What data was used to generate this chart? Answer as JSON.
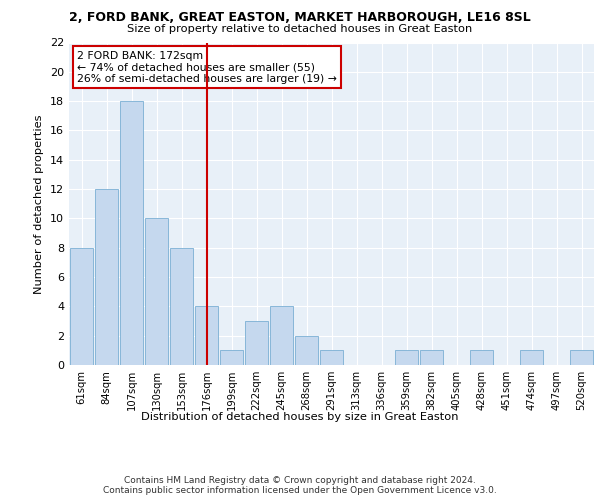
{
  "title": "2, FORD BANK, GREAT EASTON, MARKET HARBOROUGH, LE16 8SL",
  "subtitle": "Size of property relative to detached houses in Great Easton",
  "xlabel": "Distribution of detached houses by size in Great Easton",
  "ylabel": "Number of detached properties",
  "categories": [
    "61sqm",
    "84sqm",
    "107sqm",
    "130sqm",
    "153sqm",
    "176sqm",
    "199sqm",
    "222sqm",
    "245sqm",
    "268sqm",
    "291sqm",
    "313sqm",
    "336sqm",
    "359sqm",
    "382sqm",
    "405sqm",
    "428sqm",
    "451sqm",
    "474sqm",
    "497sqm",
    "520sqm"
  ],
  "values": [
    8,
    12,
    18,
    10,
    8,
    4,
    1,
    3,
    4,
    2,
    1,
    0,
    0,
    1,
    1,
    0,
    1,
    0,
    1,
    0,
    1
  ],
  "bar_color": "#c5d8ee",
  "bar_edge_color": "#7aafd4",
  "vline_index": 5,
  "vline_color": "#cc0000",
  "annotation_line1": "2 FORD BANK: 172sqm",
  "annotation_line2": "← 74% of detached houses are smaller (55)",
  "annotation_line3": "26% of semi-detached houses are larger (19) →",
  "annotation_box_color": "#ffffff",
  "annotation_box_edge": "#cc0000",
  "ylim": [
    0,
    22
  ],
  "yticks": [
    0,
    2,
    4,
    6,
    8,
    10,
    12,
    14,
    16,
    18,
    20,
    22
  ],
  "bg_color": "#e8f0f8",
  "footer_line1": "Contains HM Land Registry data © Crown copyright and database right 2024.",
  "footer_line2": "Contains public sector information licensed under the Open Government Licence v3.0."
}
